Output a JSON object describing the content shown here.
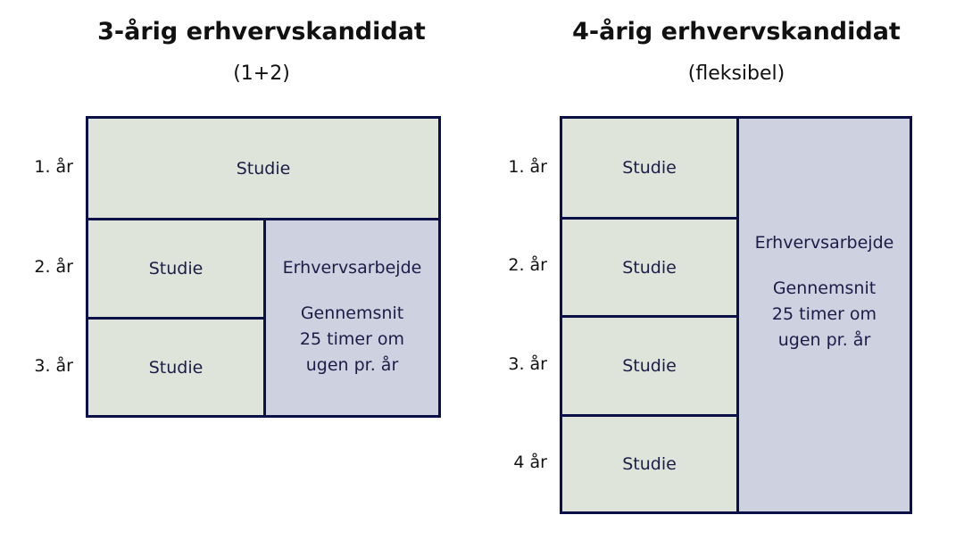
{
  "left": {
    "title": "3-årig erhvervskandidat",
    "subtitle": "(1+2)",
    "years": [
      "1. år",
      "2. år",
      "3. år"
    ],
    "study": [
      "Studie",
      "Studie",
      "Studie"
    ],
    "work": {
      "title": "Erhvervsarbejde",
      "line1": "Gennemsnit",
      "line2": "25 timer om",
      "line3": "ugen pr. år"
    }
  },
  "right": {
    "title": "4-årig erhvervskandidat",
    "subtitle": "(fleksibel)",
    "years": [
      "1. år",
      "2. år",
      "3. år",
      "4 år"
    ],
    "study": [
      "Studie",
      "Studie",
      "Studie",
      "Studie"
    ],
    "work": {
      "title": "Erhvervsarbejde",
      "line1": "Gennemsnit",
      "line2": "25 timer om",
      "line3": "ugen pr. år"
    }
  },
  "colors": {
    "study": "#dfe4da",
    "work": "#cdd1e0",
    "border": "#0b1146"
  }
}
